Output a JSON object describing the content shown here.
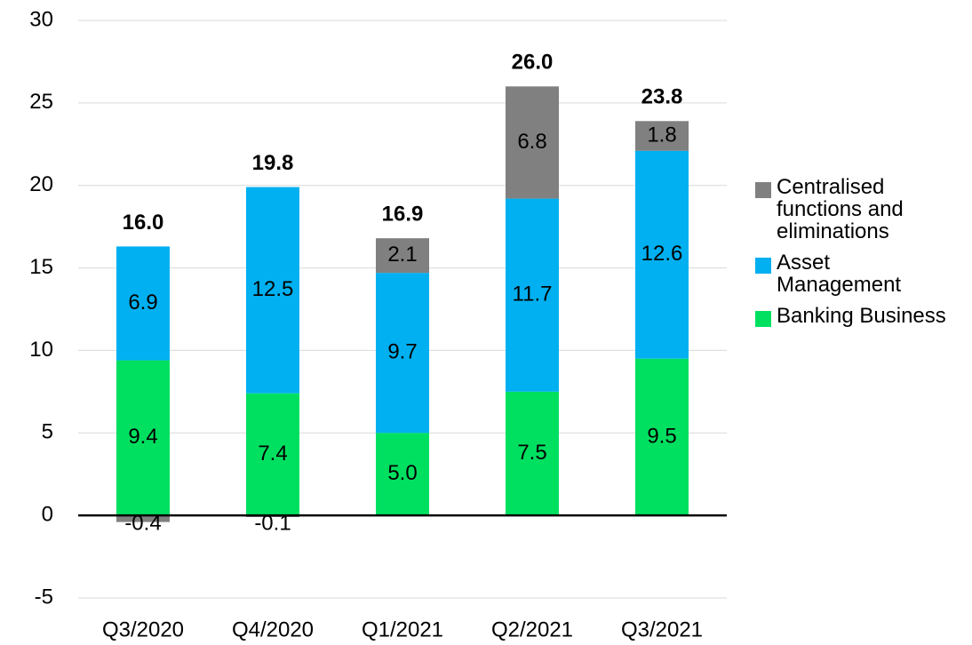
{
  "chart_data": {
    "type": "stacked_bar",
    "categories": [
      "Q3/2020",
      "Q4/2020",
      "Q1/2021",
      "Q2/2021",
      "Q3/2021"
    ],
    "series": [
      {
        "name": "Banking Business",
        "color": "#00e060",
        "values": [
          9.4,
          7.4,
          5.0,
          7.5,
          9.5
        ],
        "value_labels": [
          "9.4",
          "7.4",
          "5.0",
          "7.5",
          "9.5"
        ]
      },
      {
        "name": "Asset Management",
        "color": "#00b0f0",
        "values": [
          6.9,
          12.5,
          9.7,
          11.7,
          12.6
        ]
      },
      {
        "name": "Centralised functions and eliminations",
        "color": "#808080",
        "values": [
          -0.4,
          -0.1,
          2.1,
          6.8,
          1.8
        ]
      }
    ],
    "totals": [
      16.0,
      19.8,
      16.9,
      26.0,
      23.8
    ],
    "totals_labels": [
      "16.0",
      "19.8",
      "16.9",
      "26.0",
      "23.8"
    ],
    "ylim": [
      -5,
      30
    ],
    "yticks": [
      -5,
      0,
      5,
      10,
      15,
      20,
      25,
      30
    ],
    "grid": true,
    "legend": "right"
  }
}
